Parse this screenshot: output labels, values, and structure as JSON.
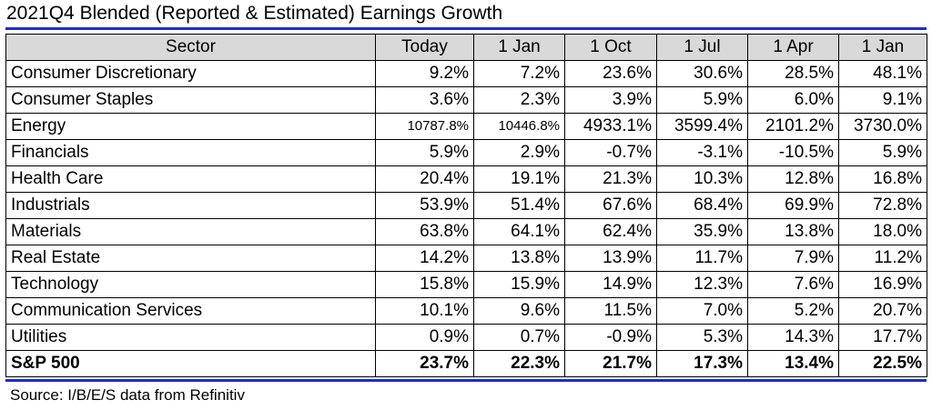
{
  "title": "2021Q4 Blended (Reported & Estimated) Earnings Growth",
  "source": "Source: I/B/E/S data from Refinitiv",
  "colors": {
    "rule": "#1f2fc4",
    "header_bg": "#d9d9d9"
  },
  "table": {
    "headers": [
      "Sector",
      "Today",
      "1 Jan",
      "1 Oct",
      "1 Jul",
      "1 Apr",
      "1 Jan"
    ],
    "rows": [
      [
        "Consumer Discretionary",
        "9.2%",
        "7.2%",
        "23.6%",
        "30.6%",
        "28.5%",
        "48.1%"
      ],
      [
        "Consumer Staples",
        "3.6%",
        "2.3%",
        "3.9%",
        "5.9%",
        "6.0%",
        "9.1%"
      ],
      [
        "Energy",
        "10787.8%",
        "10446.8%",
        "4933.1%",
        "3599.4%",
        "2101.2%",
        "3730.0%"
      ],
      [
        "Financials",
        "5.9%",
        "2.9%",
        "-0.7%",
        "-3.1%",
        "-10.5%",
        "5.9%"
      ],
      [
        "Health Care",
        "20.4%",
        "19.1%",
        "21.3%",
        "10.3%",
        "12.8%",
        "16.8%"
      ],
      [
        "Industrials",
        "53.9%",
        "51.4%",
        "67.6%",
        "68.4%",
        "69.9%",
        "72.8%"
      ],
      [
        "Materials",
        "63.8%",
        "64.1%",
        "62.4%",
        "35.9%",
        "13.8%",
        "18.0%"
      ],
      [
        "Real Estate",
        "14.2%",
        "13.8%",
        "13.9%",
        "11.7%",
        "7.9%",
        "11.2%"
      ],
      [
        "Technology",
        "15.8%",
        "15.9%",
        "14.9%",
        "12.3%",
        "7.6%",
        "16.9%"
      ],
      [
        "Communication Services",
        "10.1%",
        "9.6%",
        "11.5%",
        "7.0%",
        "5.2%",
        "20.7%"
      ],
      [
        "Utilities",
        "0.9%",
        "0.7%",
        "-0.9%",
        "5.3%",
        "14.3%",
        "17.7%"
      ]
    ],
    "total": [
      "S&P 500",
      "23.7%",
      "22.3%",
      "21.7%",
      "17.3%",
      "13.4%",
      "22.5%"
    ]
  }
}
